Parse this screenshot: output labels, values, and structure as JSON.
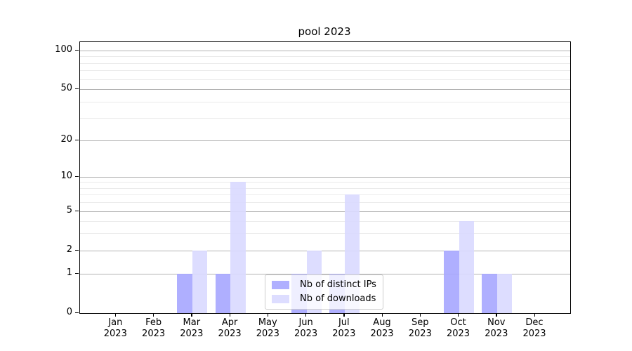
{
  "chart_data": {
    "type": "bar",
    "title": "pool 2023",
    "categories": [
      "Jan 2023",
      "Feb 2023",
      "Mar 2023",
      "Apr 2023",
      "May 2023",
      "Jun 2023",
      "Jul 2023",
      "Aug 2023",
      "Sep 2023",
      "Oct 2023",
      "Nov 2023",
      "Dec 2023"
    ],
    "series": [
      {
        "name": "Nb of distinct IPs",
        "color": "#a6a6ff",
        "values": [
          0,
          0,
          1,
          1,
          0,
          1,
          1,
          0,
          0,
          2,
          1,
          0
        ]
      },
      {
        "name": "Nb of downloads",
        "color": "#d9d9ff",
        "values": [
          0,
          0,
          2,
          9,
          0,
          2,
          7,
          0,
          0,
          4,
          1,
          0
        ]
      }
    ],
    "xlabel": "",
    "ylabel": "",
    "yscale": "symlog",
    "ylim": [
      0,
      115
    ],
    "yticks": [
      0,
      1,
      2,
      5,
      10,
      20,
      50,
      100
    ],
    "minor_gridlines": [
      3,
      4,
      6,
      7,
      8,
      9,
      30,
      40,
      60,
      70,
      80,
      90
    ],
    "grid": true,
    "legend_position": "lower center",
    "colors": {
      "axis": "#000000",
      "major_grid": "#b3b3b3",
      "minor_grid": "#ebebeb",
      "background": "#ffffff"
    }
  }
}
